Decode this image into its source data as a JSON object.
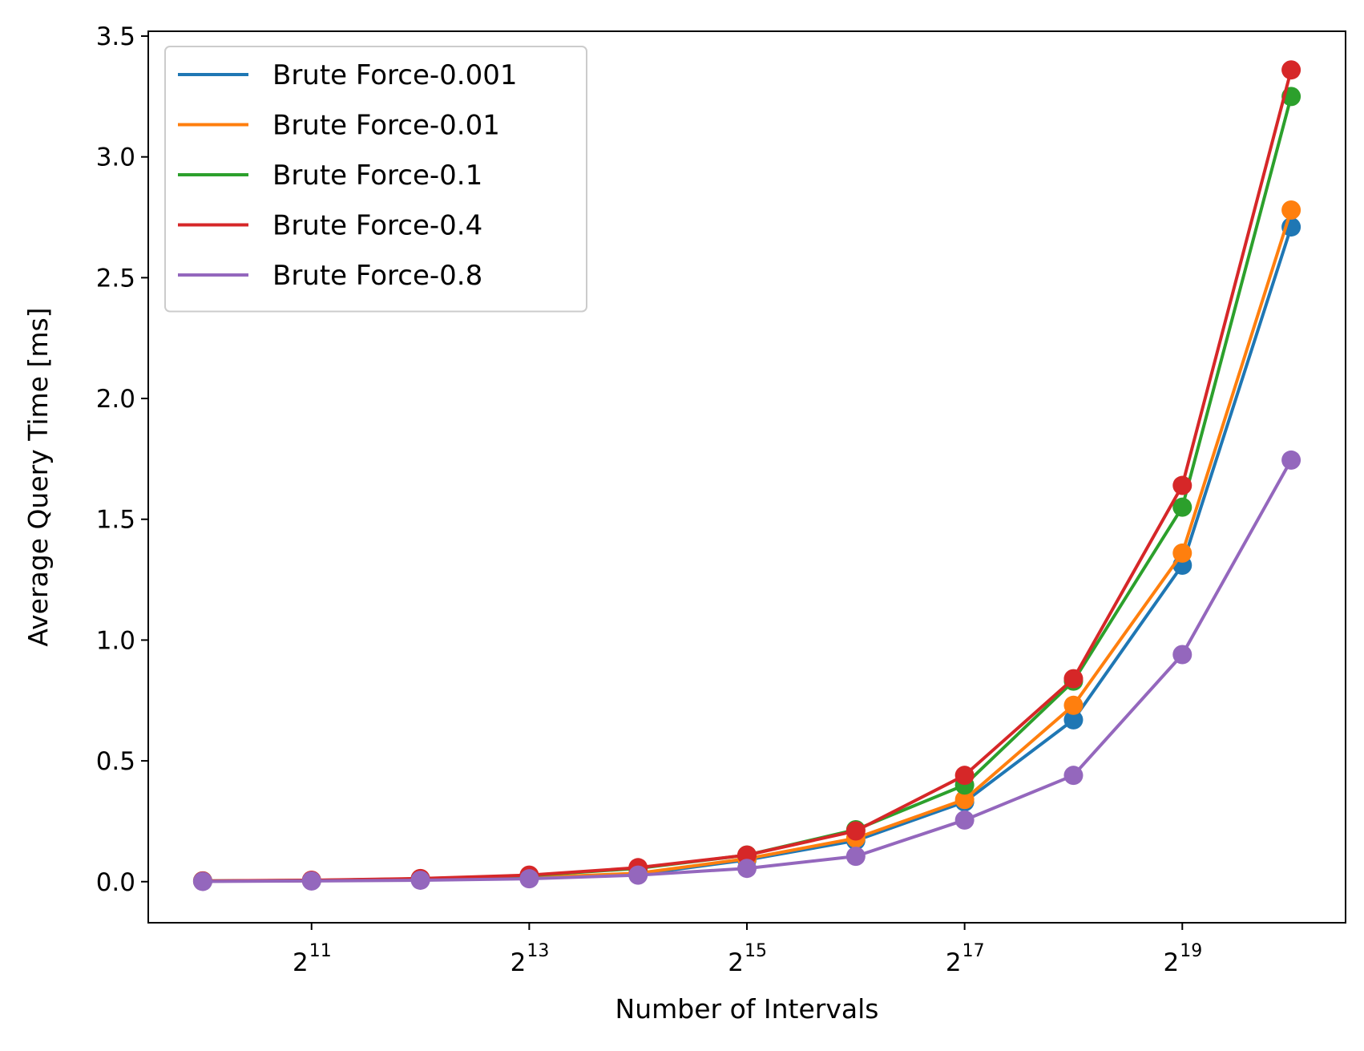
{
  "chart_data": {
    "type": "line",
    "title": "",
    "xlabel": "Number of Intervals",
    "ylabel": "Average Query Time [ms]",
    "x_scale": "log2",
    "x": [
      1024,
      2048,
      4096,
      8192,
      16384,
      32768,
      65536,
      131072,
      262144,
      524288,
      1048576
    ],
    "x_ticks": [
      {
        "value": 2048,
        "base": "2",
        "exp": "11"
      },
      {
        "value": 8192,
        "base": "2",
        "exp": "13"
      },
      {
        "value": 32768,
        "base": "2",
        "exp": "15"
      },
      {
        "value": 131072,
        "base": "2",
        "exp": "17"
      },
      {
        "value": 524288,
        "base": "2",
        "exp": "19"
      }
    ],
    "xlim": [
      724,
      1482910
    ],
    "ylim": [
      -0.17,
      3.52
    ],
    "y_ticks": [
      {
        "value": 0.0,
        "label": "0.0"
      },
      {
        "value": 0.5,
        "label": "0.5"
      },
      {
        "value": 1.0,
        "label": "1.0"
      },
      {
        "value": 1.5,
        "label": "1.5"
      },
      {
        "value": 2.0,
        "label": "2.0"
      },
      {
        "value": 2.5,
        "label": "2.5"
      },
      {
        "value": 3.0,
        "label": "3.0"
      },
      {
        "value": 3.5,
        "label": "3.5"
      }
    ],
    "grid": false,
    "legend_position": "top-left",
    "markers": true,
    "series": [
      {
        "name": "Brute Force-0.001",
        "color": "#1f77b4",
        "values": [
          0.002,
          0.004,
          0.008,
          0.015,
          0.03,
          0.09,
          0.17,
          0.33,
          0.67,
          1.31,
          2.71
        ]
      },
      {
        "name": "Brute Force-0.01",
        "color": "#ff7f0e",
        "values": [
          0.002,
          0.004,
          0.009,
          0.016,
          0.035,
          0.095,
          0.18,
          0.34,
          0.73,
          1.36,
          2.78
        ]
      },
      {
        "name": "Brute Force-0.1",
        "color": "#2ca02c",
        "values": [
          0.003,
          0.005,
          0.012,
          0.025,
          0.055,
          0.11,
          0.215,
          0.4,
          0.83,
          1.55,
          3.25
        ]
      },
      {
        "name": "Brute Force-0.4",
        "color": "#d62728",
        "values": [
          0.003,
          0.006,
          0.013,
          0.027,
          0.058,
          0.11,
          0.21,
          0.44,
          0.84,
          1.64,
          3.36
        ]
      },
      {
        "name": "Brute Force-0.8",
        "color": "#9467bd",
        "values": [
          0.001,
          0.003,
          0.006,
          0.012,
          0.027,
          0.055,
          0.105,
          0.255,
          0.44,
          0.94,
          1.745
        ]
      }
    ]
  }
}
